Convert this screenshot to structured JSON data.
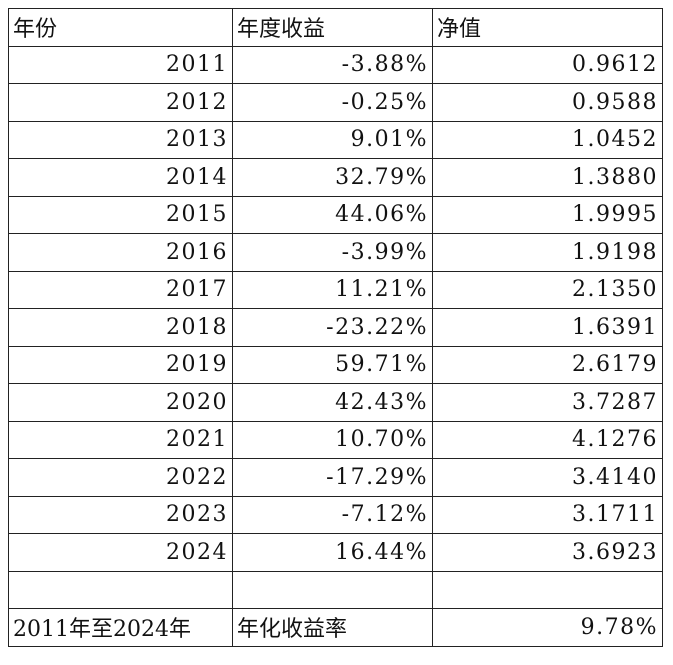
{
  "table": {
    "header": [
      "年份",
      "年度收益",
      "净值"
    ],
    "rows": [
      [
        "2011",
        "-3.88%",
        "0.9612"
      ],
      [
        "2012",
        "-0.25%",
        "0.9588"
      ],
      [
        "2013",
        "9.01%",
        "1.0452"
      ],
      [
        "2014",
        "32.79%",
        "1.3880"
      ],
      [
        "2015",
        "44.06%",
        "1.9995"
      ],
      [
        "2016",
        "-3.99%",
        "1.9198"
      ],
      [
        "2017",
        "11.21%",
        "2.1350"
      ],
      [
        "2018",
        "-23.22%",
        "1.6391"
      ],
      [
        "2019",
        "59.71%",
        "2.6179"
      ],
      [
        "2020",
        "42.43%",
        "3.7287"
      ],
      [
        "2021",
        "10.70%",
        "4.1276"
      ],
      [
        "2022",
        "-17.29%",
        "3.4140"
      ],
      [
        "2023",
        "-7.12%",
        "3.1711"
      ],
      [
        "2024",
        "16.44%",
        "3.6923"
      ]
    ],
    "summary": [
      "2011年至2024年",
      "年化收益率",
      "9.78%"
    ]
  }
}
